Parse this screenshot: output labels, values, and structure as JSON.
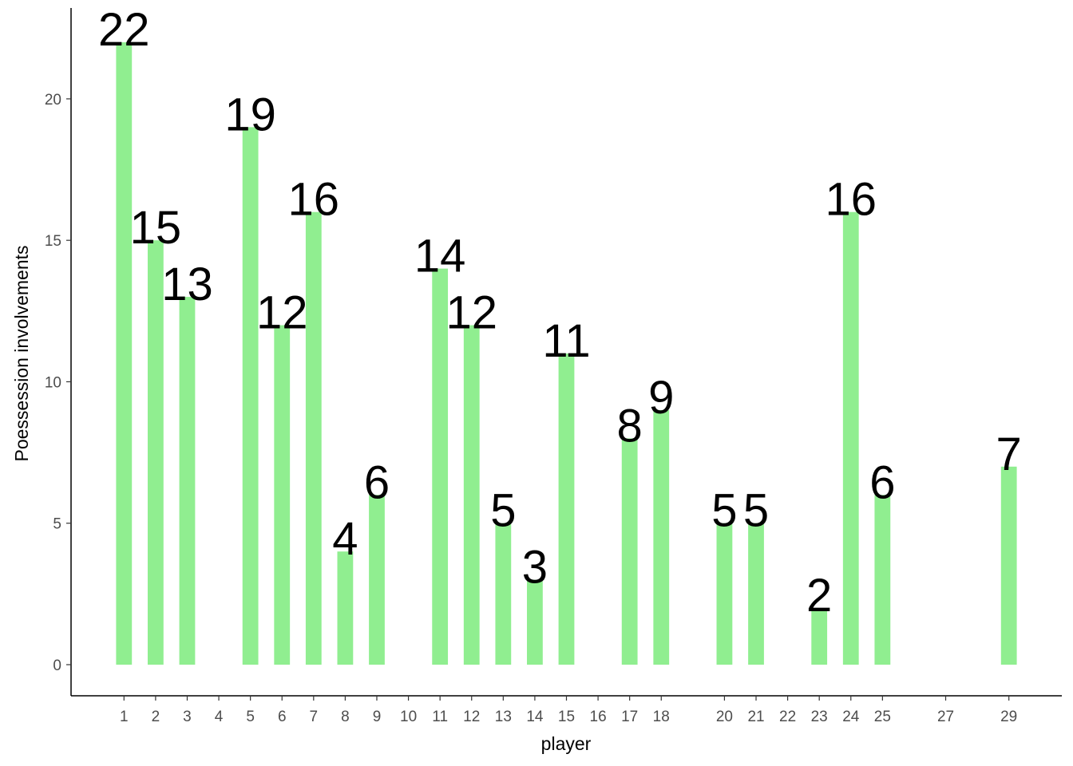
{
  "chart_data": {
    "type": "bar",
    "x": [
      1,
      2,
      3,
      5,
      6,
      7,
      8,
      9,
      11,
      12,
      13,
      14,
      15,
      17,
      18,
      20,
      21,
      23,
      24,
      25,
      29
    ],
    "values": [
      22,
      15,
      13,
      19,
      12,
      16,
      4,
      6,
      14,
      12,
      5,
      3,
      11,
      8,
      9,
      5,
      5,
      2,
      16,
      6,
      7
    ],
    "color": "#90ee90",
    "x_label": "player",
    "y_label": "Poessession involvements",
    "xlim": [
      -0.675,
      30.675
    ],
    "xticks": [
      1,
      2,
      3,
      4,
      5,
      6,
      7,
      8,
      9,
      10,
      11,
      12,
      13,
      14,
      15,
      16,
      17,
      18,
      20,
      21,
      22,
      23,
      24,
      25,
      27,
      29
    ],
    "ylim": [
      -1.1,
      23.1
    ],
    "yticks": [
      0,
      5,
      10,
      15,
      20
    ],
    "grid": false
  }
}
